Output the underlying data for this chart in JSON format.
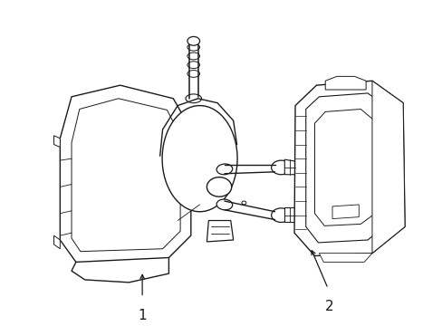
{
  "background_color": "#ffffff",
  "line_color": "#1a1a1a",
  "line_width": 1.0,
  "label1": "1",
  "label2": "2",
  "figsize": [
    4.89,
    3.6
  ],
  "dpi": 100
}
